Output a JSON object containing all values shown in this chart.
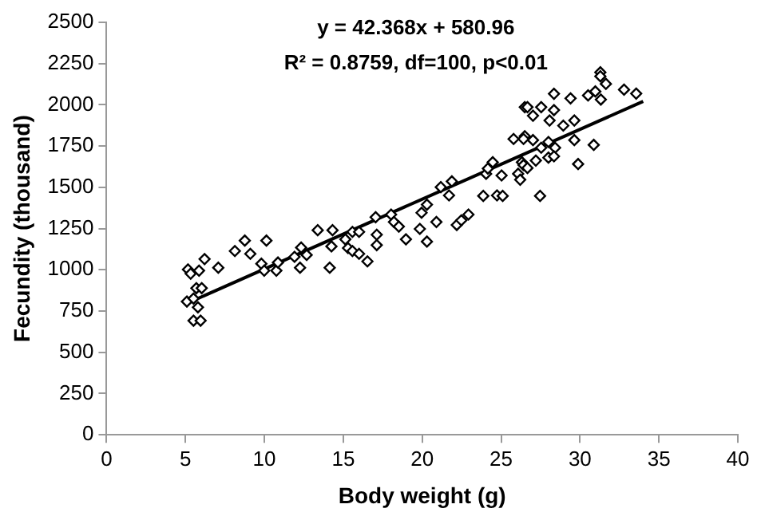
{
  "chart_data": {
    "type": "scatter",
    "xlabel": "Body weight (g)",
    "ylabel": "Fecundity (thousand)",
    "annotations": [
      "y = 42.368x + 580.96",
      "R² = 0.8759, df=100, p<0.01"
    ],
    "xlim": [
      0,
      40
    ],
    "xticks": [
      0,
      5,
      10,
      15,
      20,
      25,
      30,
      35,
      40
    ],
    "ylim": [
      0,
      2500
    ],
    "yticks": [
      0,
      250,
      500,
      750,
      1000,
      1250,
      1500,
      1750,
      2000,
      2250,
      2500
    ],
    "grid": false,
    "legend": false,
    "marker": "diamond",
    "series": [
      {
        "color": "#000000",
        "x": [
          5.16,
          5.33,
          5.86,
          5.09,
          5.51,
          5.69,
          6.03,
          5.79,
          5.51,
          5.96,
          6.21,
          7.08,
          8.13,
          8.76,
          9.11,
          10.13,
          9.81,
          9.99,
          10.76,
          10.86,
          11.91,
          12.33,
          12.26,
          12.68,
          13.38,
          14.32,
          14.14,
          14.25,
          15.13,
          15.3,
          15.58,
          16.0,
          15.58,
          16.0,
          16.53,
          17.05,
          17.12,
          17.12,
          18.03,
          18.21,
          18.52,
          18.97,
          19.85,
          19.96,
          20.3,
          20.3,
          20.9,
          21.18,
          21.7,
          21.88,
          22.19,
          22.48,
          22.93,
          23.87,
          24.05,
          24.16,
          24.47,
          24.74,
          25.03,
          25.1,
          25.79,
          26.08,
          26.21,
          26.5,
          26.5,
          26.32,
          26.42,
          26.42,
          26.67,
          26.67,
          27.02,
          27.02,
          27.2,
          27.54,
          27.47,
          27.54,
          28.0,
          28.0,
          28.07,
          28.35,
          28.35,
          28.42,
          28.35,
          28.94,
          29.4,
          29.64,
          29.64,
          29.88,
          30.51,
          30.87,
          30.97,
          31.29,
          31.29,
          31.32,
          31.64,
          32.79,
          33.56
        ],
        "values": [
          1002,
          977,
          995,
          808,
          826,
          889,
          889,
          773,
          692,
          692,
          1065,
          1013,
          1114,
          1177,
          1097,
          1177,
          1037,
          995,
          995,
          1044,
          1079,
          1135,
          1013,
          1090,
          1240,
          1240,
          1013,
          1142,
          1185,
          1132,
          1230,
          1230,
          1114,
          1097,
          1051,
          1319,
          1213,
          1150,
          1335,
          1290,
          1262,
          1185,
          1248,
          1346,
          1395,
          1171,
          1290,
          1501,
          1451,
          1536,
          1272,
          1300,
          1335,
          1448,
          1582,
          1614,
          1652,
          1451,
          1572,
          1448,
          1793,
          1582,
          1546,
          1986,
          1810,
          1652,
          1793,
          1635,
          1986,
          1617,
          1934,
          1786,
          1662,
          1986,
          1448,
          1740,
          1775,
          1680,
          1905,
          2067,
          1968,
          1740,
          1688,
          1874,
          2039,
          1905,
          1786,
          1641,
          2057,
          1757,
          2081,
          2197,
          2173,
          2032,
          2127,
          2092,
          2068
        ]
      },
      {
        "type": "line",
        "color": "#000000",
        "x": [
          5,
          34
        ],
        "values": [
          793,
          2021
        ],
        "marker": "none"
      }
    ]
  }
}
